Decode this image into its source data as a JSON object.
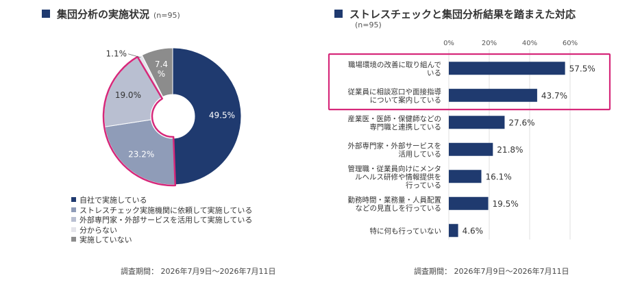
{
  "left": {
    "title": "集団分析の実施状況",
    "n_label": "(n=95)",
    "legend": [
      {
        "label": "自社で実施している",
        "color": "#1f3a6f"
      },
      {
        "label": "ストレスチェック実施機関に依頼して実施している",
        "color": "#8f9cb8"
      },
      {
        "label": "外部専門家・外部サービスを活用して実施している",
        "color": "#b9bfd1"
      },
      {
        "label": "分からない",
        "color": "#e4e4ea"
      },
      {
        "label": "実施していない",
        "color": "#8c8c8c"
      }
    ],
    "survey_period": "調査期間： 2026年7月9日〜2026年7月11日"
  },
  "right": {
    "title": "ストレスチェックと集団分析結果を踏まえた対応",
    "n_label": "(n=95)",
    "survey_period": "調査期間： 2026年7月9日〜2026年7月11日"
  },
  "chart_data": [
    {
      "type": "pie",
      "variant": "donut",
      "title": "集団分析の実施状況",
      "subtitle": "(n=95)",
      "slices": [
        {
          "label": "自社で実施している",
          "value": 49.5,
          "display": "49.5%",
          "color": "#1f3a6f"
        },
        {
          "label": "ストレスチェック実施機関に依頼して実施している",
          "value": 23.2,
          "display": "23.2%",
          "color": "#8f9cb8"
        },
        {
          "label": "外部専門家・外部サービスを活用して実施している",
          "value": 19.0,
          "display": "19.0%",
          "color": "#b9bfd1"
        },
        {
          "label": "分からない",
          "value": 1.1,
          "display": "1.1%",
          "color": "#e4e4ea"
        },
        {
          "label": "実施していない",
          "value": 7.4,
          "display": "7.4%",
          "color": "#8c8c8c"
        }
      ],
      "highlighted_slices": [
        1,
        2
      ],
      "highlight_color": "#d6287a",
      "legend_position": "bottom-left"
    },
    {
      "type": "bar",
      "orientation": "horizontal",
      "title": "ストレスチェックと集団分析結果を踏まえた対応",
      "subtitle": "(n=95)",
      "categories": [
        [
          "職場環境の改善に取り組んで",
          "いる"
        ],
        [
          "従業員に相談窓口や面接指導",
          "について案内している"
        ],
        [
          "産業医・医師・保健師などの",
          "専門職と連携している"
        ],
        [
          "外部専門家・外部サービスを",
          "活用している"
        ],
        [
          "管理職・従業員向けにメンタ",
          "ルヘルス研修や情報提供を",
          "行っている"
        ],
        [
          "勤務時間・業務量・人員配置",
          "などの見直しを行っている"
        ],
        [
          "特に何も行っていない"
        ]
      ],
      "values": [
        57.5,
        43.7,
        27.6,
        21.8,
        16.1,
        19.5,
        4.6
      ],
      "value_labels": [
        "57.5%",
        "43.7%",
        "27.6%",
        "21.8%",
        "16.1%",
        "19.5%",
        "4.6%"
      ],
      "xlim": [
        0,
        70
      ],
      "xticks": [
        "0%",
        "20%",
        "40%",
        "60%"
      ],
      "xtick_values": [
        0,
        20,
        40,
        60
      ],
      "bar_color": "#1f3a6f",
      "highlighted_rows": [
        0,
        1
      ],
      "highlight_color": "#d6287a",
      "grid": true
    }
  ]
}
